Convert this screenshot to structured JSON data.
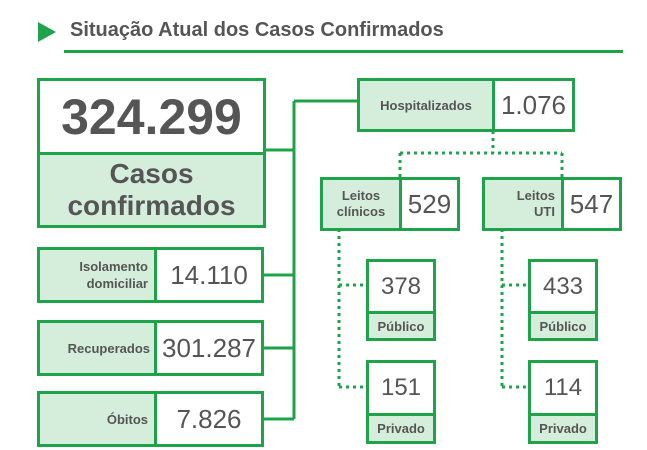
{
  "header": {
    "title": "Situação Atual dos Casos Confirmados",
    "icon": "play-triangle-icon",
    "accent": "#1fa34a"
  },
  "total": {
    "value": "324.299",
    "label_line1": "Casos",
    "label_line2": "confirmados"
  },
  "left": [
    {
      "label_line1": "Isolamento",
      "label_line2": "domiciliar",
      "value": "14.110"
    },
    {
      "label_line1": "Recuperados",
      "label_line2": "",
      "value": "301.287"
    },
    {
      "label_line1": "Óbitos",
      "label_line2": "",
      "value": "7.826"
    }
  ],
  "hospital": {
    "label": "Hospitalizados",
    "value": "1.076"
  },
  "clinicos": {
    "label_line1": "Leitos",
    "label_line2": "clínicos",
    "value": "529",
    "publico": {
      "value": "378",
      "label": "Público"
    },
    "privado": {
      "value": "151",
      "label": "Privado"
    }
  },
  "uti": {
    "label_line1": "Leitos",
    "label_line2": "UTI",
    "value": "547",
    "publico": {
      "value": "433",
      "label": "Público"
    },
    "privado": {
      "value": "114",
      "label": "Privado"
    }
  },
  "colors": {
    "green": "#1fa34a",
    "light_green": "#d5eedb",
    "text": "#555555"
  }
}
